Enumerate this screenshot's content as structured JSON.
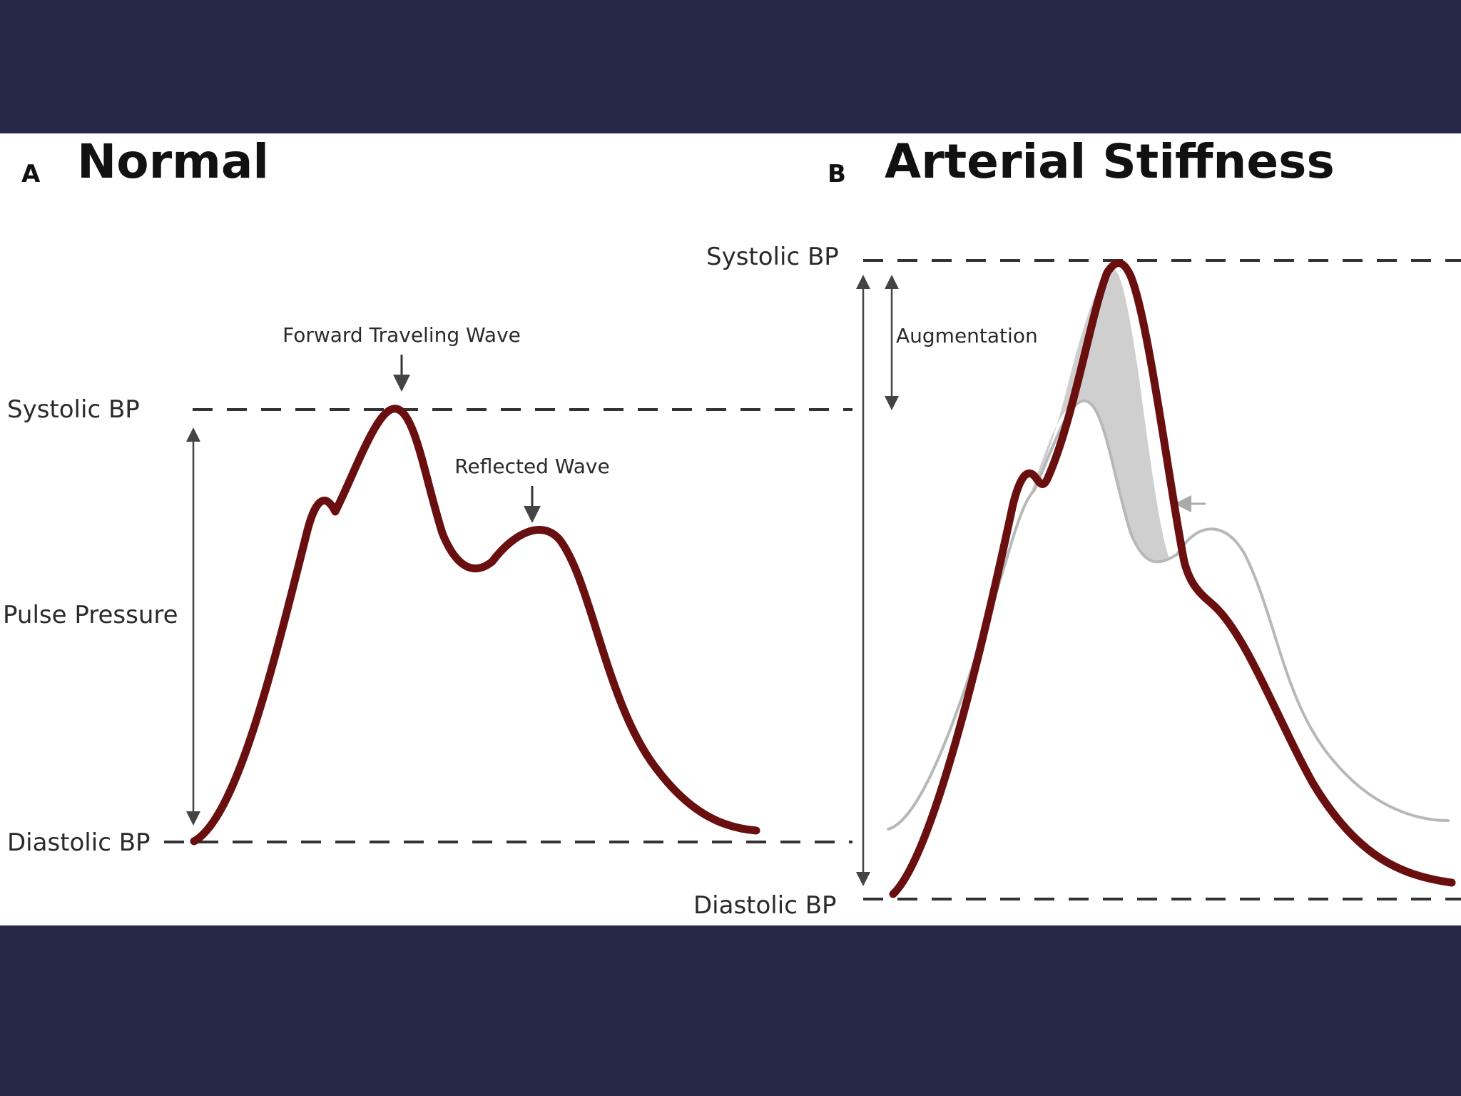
{
  "panels": [
    {
      "letter": "A",
      "title": "Normal",
      "labels": {
        "systolic": "Systolic BP",
        "diastolic": "Diastolic BP",
        "pulse_pressure": "Pulse Pressure",
        "forward_wave": "Forward Traveling Wave",
        "reflected_wave": "Reflected Wave"
      }
    },
    {
      "letter": "B",
      "title": "Arterial Stiffness",
      "labels": {
        "systolic": "Systolic BP",
        "diastolic": "Diastolic BP",
        "augmentation": "Augmentation"
      }
    }
  ],
  "colors": {
    "waveform": "#6a0f10",
    "reference_waveform": "#b8b8b8",
    "augmentation_fill": "#cfcfcf",
    "dashed_line": "#333333",
    "arrow": "#444444",
    "background": "#252947"
  }
}
